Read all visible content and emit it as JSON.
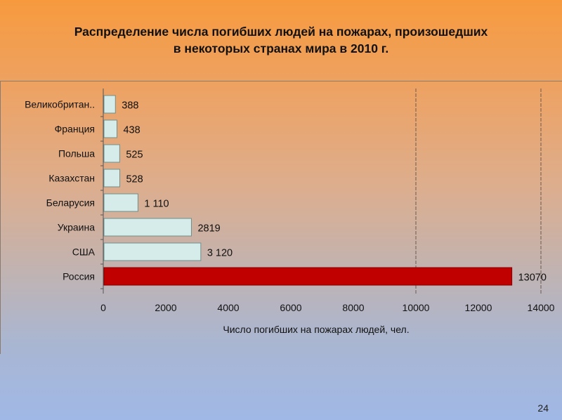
{
  "slide": {
    "title_line1": "Распределение числа погибших людей на пожарах, произошедших",
    "title_line2": "в некоторых странах мира в 2010 г.",
    "page_number": "24"
  },
  "chart_data": {
    "type": "bar",
    "orientation": "horizontal",
    "categories": [
      "Великобритан..",
      "Франция",
      "Польша",
      "Казахстан",
      "Беларусия",
      "Украина",
      "США",
      "Россия"
    ],
    "values": [
      388,
      438,
      525,
      528,
      1110,
      2819,
      3120,
      13070
    ],
    "data_labels": [
      "388",
      "438",
      "525",
      "528",
      "1 110",
      "2819",
      "3 120",
      "13070"
    ],
    "bar_colors": [
      "#d6ecea",
      "#d6ecea",
      "#d6ecea",
      "#d6ecea",
      "#d6ecea",
      "#d6ecea",
      "#d6ecea",
      "#c00000"
    ],
    "xlabel": "Число погибших на пожарах людей, чел.",
    "xticks": [
      "0",
      "2000",
      "4000",
      "6000",
      "8000",
      "10000",
      "12000",
      "14000"
    ],
    "xlim": [
      0,
      14000
    ],
    "grid": "vertical gridlines at 10000 and 14000",
    "legend": "none"
  }
}
